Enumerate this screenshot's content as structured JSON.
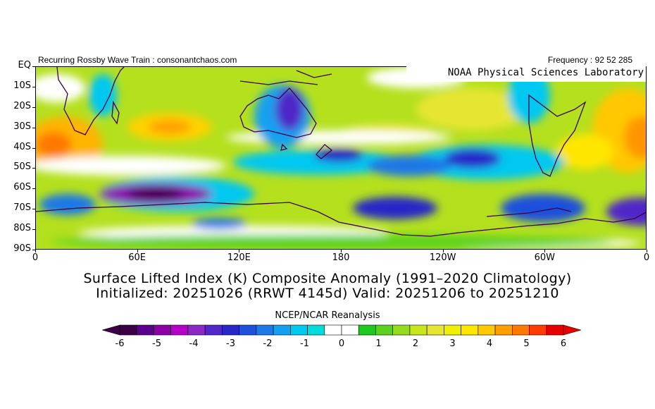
{
  "header": {
    "left_text": "Recurring Rossby Wave Train : consonantchaos.com",
    "right_text": "Frequency : 92 52 285"
  },
  "map": {
    "lab_label": "NOAA Physical Sciences Laboratory",
    "projection": "equirectangular",
    "lat_range": [
      "EQ",
      "90S"
    ],
    "lon_range": [
      "0",
      "0"
    ],
    "y_ticks": [
      "EQ",
      "10S",
      "20S",
      "30S",
      "40S",
      "50S",
      "60S",
      "70S",
      "80S",
      "90S"
    ],
    "x_ticks": [
      "0",
      "60E",
      "120E",
      "180",
      "120W",
      "60W",
      "0"
    ]
  },
  "title": {
    "line1": "Surface Lifted Index (K) Composite Anomaly (1991–2020 Climatology)",
    "line2": "Initialized: 20251026 (RRWT 4145d) Valid: 20251206 to 20251210"
  },
  "source": "NCEP/NCAR Reanalysis",
  "colorbar": {
    "labels": [
      "-6",
      "-5",
      "-4",
      "-3",
      "-2",
      "-1",
      "0",
      "1",
      "2",
      "3",
      "4",
      "5",
      "6"
    ],
    "colors": [
      "#3c0046",
      "#5a008c",
      "#8c00aa",
      "#b400c8",
      "#8c28c8",
      "#5028c8",
      "#2828c8",
      "#1e50dc",
      "#1e78e6",
      "#14a0f0",
      "#00c8f0",
      "#00dcdc",
      "#ffffff",
      "#ffffff",
      "#1ec81e",
      "#5ad21e",
      "#96dc1e",
      "#c8e61e",
      "#e6e632",
      "#f0f000",
      "#ffe600",
      "#ffc800",
      "#ffa000",
      "#ff7800",
      "#ff3c00",
      "#e60000"
    ],
    "under_color": "#3c0046",
    "over_color": "#e60000"
  }
}
